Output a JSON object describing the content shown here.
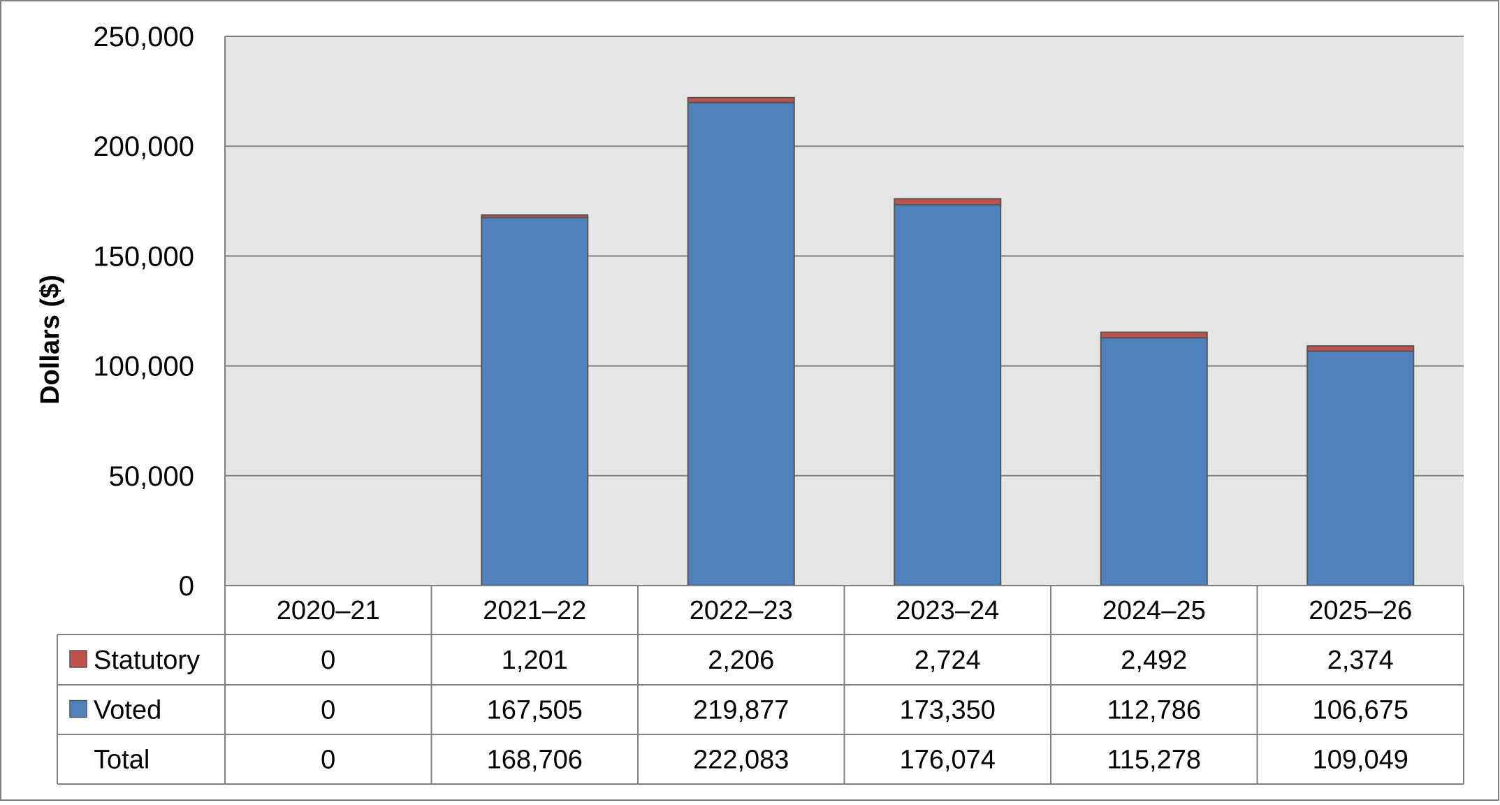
{
  "chart_data": {
    "type": "bar",
    "stacked": true,
    "title": "",
    "xlabel": "",
    "ylabel": "Dollars ($)",
    "ylim": [
      0,
      250000
    ],
    "yticks": [
      0,
      50000,
      100000,
      150000,
      200000,
      250000
    ],
    "ytick_labels": [
      "0",
      "50,000",
      "100,000",
      "150,000",
      "200,000",
      "250,000"
    ],
    "grid": true,
    "legend": "table-left",
    "categories": [
      "2020–21",
      "2021–22",
      "2022–23",
      "2023–24",
      "2024–25",
      "2025–26"
    ],
    "series": [
      {
        "name": "Voted",
        "color": "#4F81BD",
        "values": [
          0,
          167505,
          219877,
          173350,
          112786,
          106675
        ],
        "labels": [
          "0",
          "167,505",
          "219,877",
          "173,350",
          "112,786",
          "106,675"
        ]
      },
      {
        "name": "Statutory",
        "color": "#C0504D",
        "values": [
          0,
          1201,
          2206,
          2724,
          2492,
          2374
        ],
        "labels": [
          "0",
          "1,201",
          "2,206",
          "2,724",
          "2,492",
          "2,374"
        ]
      }
    ],
    "total_row": {
      "name": "Total",
      "values": [
        0,
        168706,
        222083,
        176074,
        115278,
        109049
      ],
      "labels": [
        "0",
        "168,706",
        "222,083",
        "176,074",
        "115,278",
        "109,049"
      ]
    },
    "colors": {
      "plot_background": "#E6E6E6",
      "gridline": "#808080",
      "bar_border": "#555555",
      "table_border": "#808080",
      "frame_border": "#808080"
    }
  }
}
